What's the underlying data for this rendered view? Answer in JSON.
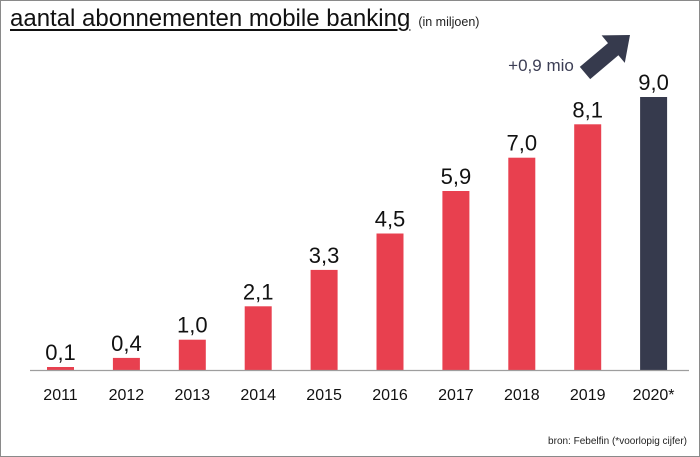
{
  "chart_data": {
    "type": "bar",
    "title": "aantal abonnementen mobile banking",
    "subtitle": "(in miljoen)",
    "categories": [
      "2011",
      "2012",
      "2013",
      "2014",
      "2015",
      "2016",
      "2017",
      "2018",
      "2019",
      "2020*"
    ],
    "values": [
      0.1,
      0.4,
      1.0,
      2.1,
      3.3,
      4.5,
      5.9,
      7.0,
      8.1,
      9.0
    ],
    "value_labels": [
      "0,1",
      "0,4",
      "1,0",
      "2,1",
      "3,3",
      "4,5",
      "5,9",
      "7,0",
      "8,1",
      "9,0"
    ],
    "ylim": [
      0,
      9
    ],
    "xlabel": "",
    "ylabel": "",
    "grid": false,
    "highlight_index": 9,
    "colors": {
      "bar": "#e8404f",
      "highlight": "#363a4d",
      "axis": "#9e9e9e",
      "arrow": "#363a4d"
    },
    "annotation": "+0,9 mio",
    "source": "bron: Febelfin (*voorlopig cijfer)"
  }
}
